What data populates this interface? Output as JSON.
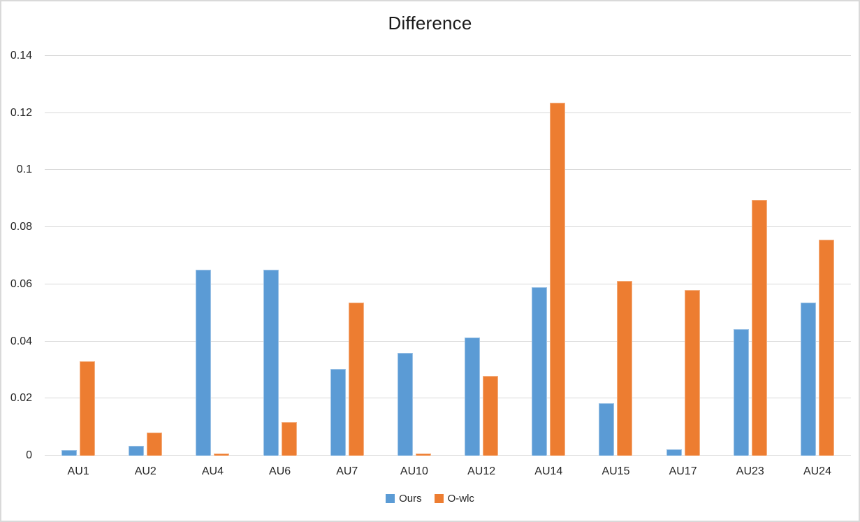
{
  "window": {
    "background": "#ffffff",
    "border_color": "#d9d9d9",
    "gridline_color": "#d9d9d9",
    "text_color": "#262626"
  },
  "chart_data": {
    "type": "bar",
    "title": "Difference",
    "xlabel": "",
    "ylabel": "",
    "grid": true,
    "legend_position": "bottom",
    "ylim": [
      0,
      0.14
    ],
    "yticks": [
      {
        "value": 0,
        "label": "0"
      },
      {
        "value": 0.02,
        "label": "0.02"
      },
      {
        "value": 0.04,
        "label": "0.04"
      },
      {
        "value": 0.06,
        "label": "0.06"
      },
      {
        "value": 0.08,
        "label": "0.08"
      },
      {
        "value": 0.1,
        "label": "0.1"
      },
      {
        "value": 0.12,
        "label": "0.12"
      },
      {
        "value": 0.14,
        "label": "0.14"
      }
    ],
    "categories": [
      "AU1",
      "AU2",
      "AU4",
      "AU6",
      "AU7",
      "AU10",
      "AU12",
      "AU14",
      "AU15",
      "AU17",
      "AU23",
      "AU24"
    ],
    "series": [
      {
        "name": "Ours",
        "color": "#5B9BD5",
        "border_color": "#9DC3E6",
        "values": [
          0.002,
          0.0035,
          0.065,
          0.065,
          0.0303,
          0.036,
          0.0414,
          0.059,
          0.0183,
          0.0022,
          0.0442,
          0.0535
        ]
      },
      {
        "name": "O-wlc",
        "color": "#ED7D31",
        "border_color": "#F4B183",
        "values": [
          0.033,
          0.008,
          0.0007,
          0.0117,
          0.0535,
          0.0007,
          0.0278,
          0.1237,
          0.0611,
          0.0581,
          0.0897,
          0.0757
        ]
      }
    ]
  }
}
